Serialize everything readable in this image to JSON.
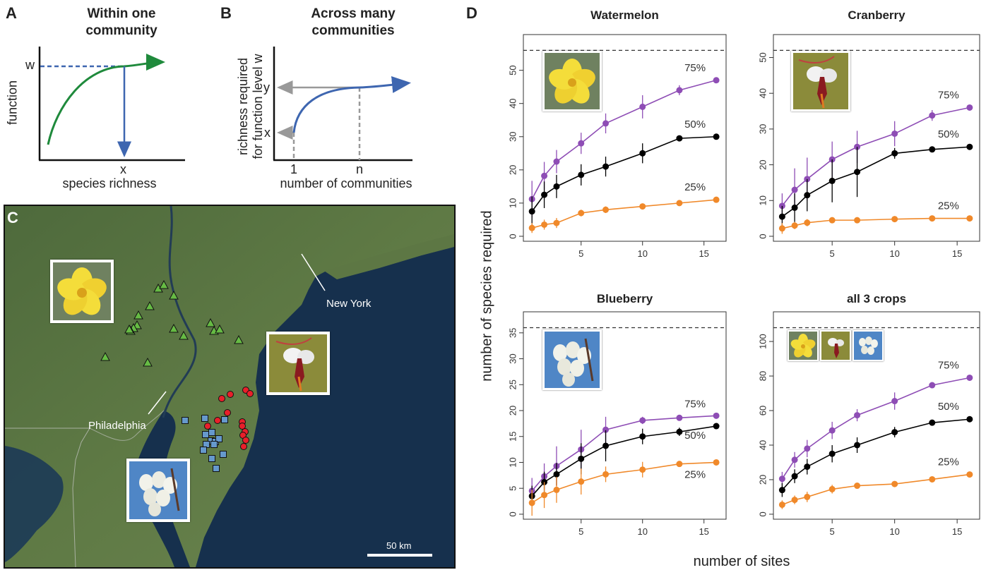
{
  "panels": {
    "a": {
      "letter": "A",
      "title_line1": "Within one",
      "title_line2": "community",
      "ylabel": "function",
      "xlabel": "species richness",
      "y_mark": "w",
      "x_mark": "x"
    },
    "b": {
      "letter": "B",
      "title_line1": "Across many",
      "title_line2": "communities",
      "ylabel_line1": "richness required",
      "ylabel_line2": "for function level w",
      "xlabel": "number of communities",
      "y_mark_top": "y",
      "y_mark_bottom": "x",
      "x_mark_left": "1",
      "x_mark_right": "n"
    },
    "c": {
      "letter": "C",
      "label_ny": "New York",
      "label_phl": "Philadelphia",
      "scale": "50 km"
    },
    "d": {
      "letter": "D",
      "ylabel": "number of species required",
      "xlabel": "number of sites"
    }
  },
  "colors": {
    "watermelon": "#66bb44",
    "cranberry": "#e8202a",
    "blueberry": "#6699cc",
    "p75": "#8e4db5",
    "p50": "#000000",
    "p25": "#f0892a"
  },
  "chart_data": [
    {
      "type": "line",
      "title": "Watermelon",
      "x": [
        1,
        2,
        3,
        5,
        7,
        10,
        13,
        16
      ],
      "xticks": [
        5,
        10,
        15
      ],
      "ylim": [
        0,
        56
      ],
      "yticks": [
        0,
        10,
        20,
        30,
        40,
        50
      ],
      "ref_line": 56,
      "series": [
        {
          "name": "75%",
          "values": [
            11.2,
            18.2,
            22.5,
            28,
            34,
            39,
            44,
            47
          ],
          "err": [
            5.5,
            4.2,
            3.5,
            3.2,
            3,
            3.5,
            1.5,
            0.5
          ]
        },
        {
          "name": "50%",
          "values": [
            7.5,
            12.5,
            15,
            18.5,
            21,
            25,
            29.5,
            30
          ],
          "err": [
            4.5,
            4,
            3.5,
            3.2,
            3,
            3,
            0.5,
            0.5
          ]
        },
        {
          "name": "25%",
          "values": [
            2.5,
            3.5,
            4,
            7,
            8,
            9,
            10,
            11
          ],
          "err": [
            1.5,
            1.5,
            1.5,
            1,
            1,
            0.5,
            0.5,
            0.5
          ]
        }
      ]
    },
    {
      "type": "line",
      "title": "Cranberry",
      "x": [
        1,
        2,
        3,
        5,
        7,
        10,
        13,
        16
      ],
      "xticks": [
        5,
        10,
        15
      ],
      "ylim": [
        0,
        52
      ],
      "yticks": [
        0,
        10,
        20,
        30,
        40,
        50
      ],
      "ref_line": 52,
      "series": [
        {
          "name": "75%",
          "values": [
            8.5,
            13,
            16,
            21.5,
            25,
            28.7,
            33.8,
            36
          ],
          "err": [
            3.5,
            6,
            6,
            5,
            4.5,
            3.5,
            1.5,
            0.5
          ]
        },
        {
          "name": "50%",
          "values": [
            5.5,
            8,
            11.5,
            15.5,
            18,
            23.2,
            24.3,
            25
          ],
          "err": [
            3,
            4,
            4.5,
            6,
            7,
            1.5,
            0.5,
            0.5
          ]
        },
        {
          "name": "25%",
          "values": [
            2.2,
            3,
            3.8,
            4.5,
            4.5,
            4.8,
            5,
            5
          ],
          "err": [
            1.5,
            1,
            1,
            0.5,
            0.5,
            0.5,
            0.3,
            0.3
          ]
        }
      ]
    },
    {
      "type": "line",
      "title": "Blueberry",
      "x": [
        1,
        2,
        3,
        5,
        7,
        10,
        13,
        16
      ],
      "xticks": [
        5,
        10,
        15
      ],
      "ylim": [
        0,
        36
      ],
      "yticks": [
        0,
        5,
        10,
        15,
        20,
        25,
        30,
        35
      ],
      "ref_line": 36,
      "series": [
        {
          "name": "75%",
          "values": [
            4.5,
            7.3,
            9.3,
            12.5,
            16.3,
            18.1,
            18.6,
            19
          ],
          "err": [
            2.5,
            2.5,
            3.8,
            3.8,
            2.5,
            0.7,
            0.5,
            0.4
          ]
        },
        {
          "name": "50%",
          "values": [
            3.5,
            6.2,
            7.7,
            10.7,
            13.2,
            15,
            15.9,
            17
          ],
          "err": [
            2,
            2,
            2.2,
            3,
            3,
            1.5,
            0.8,
            0.4
          ]
        },
        {
          "name": "25%",
          "values": [
            2.2,
            3.7,
            4.7,
            6.3,
            7.7,
            8.6,
            9.7,
            10
          ],
          "err": [
            2.5,
            2.5,
            2.5,
            2.5,
            1.5,
            1.5,
            0.5,
            0.4
          ]
        }
      ]
    },
    {
      "type": "line",
      "title": "all 3 crops",
      "x": [
        1,
        2,
        3,
        5,
        7,
        10,
        13,
        16
      ],
      "xticks": [
        5,
        10,
        15
      ],
      "ylim": [
        0,
        108
      ],
      "yticks": [
        0,
        20,
        40,
        60,
        80,
        100
      ],
      "ref_line": 108,
      "series": [
        {
          "name": "75%",
          "values": [
            20.5,
            31.5,
            38,
            48.5,
            57.3,
            65.5,
            74.7,
            79
          ],
          "err": [
            4,
            4.5,
            5,
            5,
            3.5,
            5,
            1.5,
            1
          ]
        },
        {
          "name": "50%",
          "values": [
            14,
            22,
            27.5,
            35,
            40,
            47.5,
            53,
            55
          ],
          "err": [
            4,
            4,
            4.5,
            5,
            4.5,
            3,
            1,
            1
          ]
        },
        {
          "name": "25%",
          "values": [
            5.5,
            8.3,
            10,
            14.5,
            16.5,
            17.5,
            20.2,
            23
          ],
          "err": [
            2.5,
            2.5,
            3,
            2.5,
            1,
            1,
            0.5,
            0.5
          ]
        }
      ]
    }
  ],
  "map_sites": {
    "watermelon": [
      [
        224,
        409
      ],
      [
        232,
        404
      ],
      [
        246,
        419
      ],
      [
        212,
        434
      ],
      [
        196,
        447
      ],
      [
        194,
        461
      ],
      [
        189,
        465
      ],
      [
        185,
        469
      ],
      [
        183,
        467
      ],
      [
        246,
        466
      ],
      [
        260,
        476
      ],
      [
        298,
        458
      ],
      [
        303,
        469
      ],
      [
        311,
        467
      ],
      [
        338,
        482
      ],
      [
        209,
        514
      ],
      [
        149,
        506
      ]
    ],
    "cranberry": [
      [
        314,
        565
      ],
      [
        326,
        559
      ],
      [
        348,
        553
      ],
      [
        354,
        558
      ],
      [
        322,
        585
      ],
      [
        308,
        596
      ],
      [
        294,
        604
      ],
      [
        343,
        598
      ],
      [
        343,
        604
      ],
      [
        347,
        612
      ],
      [
        344,
        617
      ],
      [
        348,
        624
      ],
      [
        345,
        633
      ]
    ],
    "blueberry": [
      [
        262,
        596
      ],
      [
        290,
        593
      ],
      [
        300,
        613
      ],
      [
        318,
        595
      ],
      [
        291,
        616
      ],
      [
        299,
        625
      ],
      [
        305,
        626
      ],
      [
        310,
        622
      ],
      [
        292,
        630
      ],
      [
        303,
        630
      ],
      [
        288,
        638
      ],
      [
        316,
        644
      ],
      [
        300,
        650
      ],
      [
        306,
        664
      ]
    ]
  }
}
